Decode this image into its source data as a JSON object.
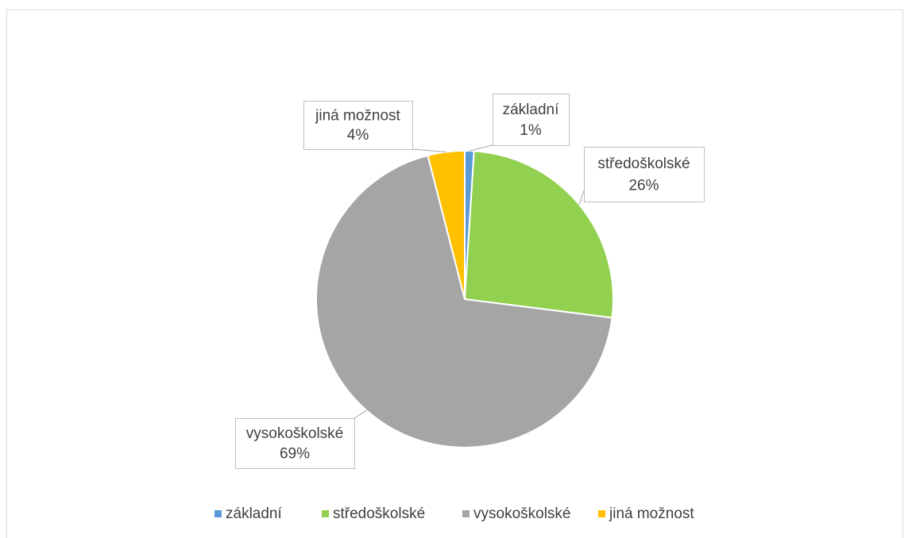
{
  "chart_data": {
    "type": "pie",
    "categories": [
      "základní",
      "středoškolské",
      "vysokoškolské",
      "jiná možnost"
    ],
    "values": [
      1,
      26,
      69,
      4
    ],
    "value_labels": [
      "1%",
      "26%",
      "69%",
      "4%"
    ],
    "colors": [
      "#5b9bd5",
      "#92d050",
      "#a5a5a5",
      "#ffc000"
    ],
    "legend": "bottom"
  }
}
